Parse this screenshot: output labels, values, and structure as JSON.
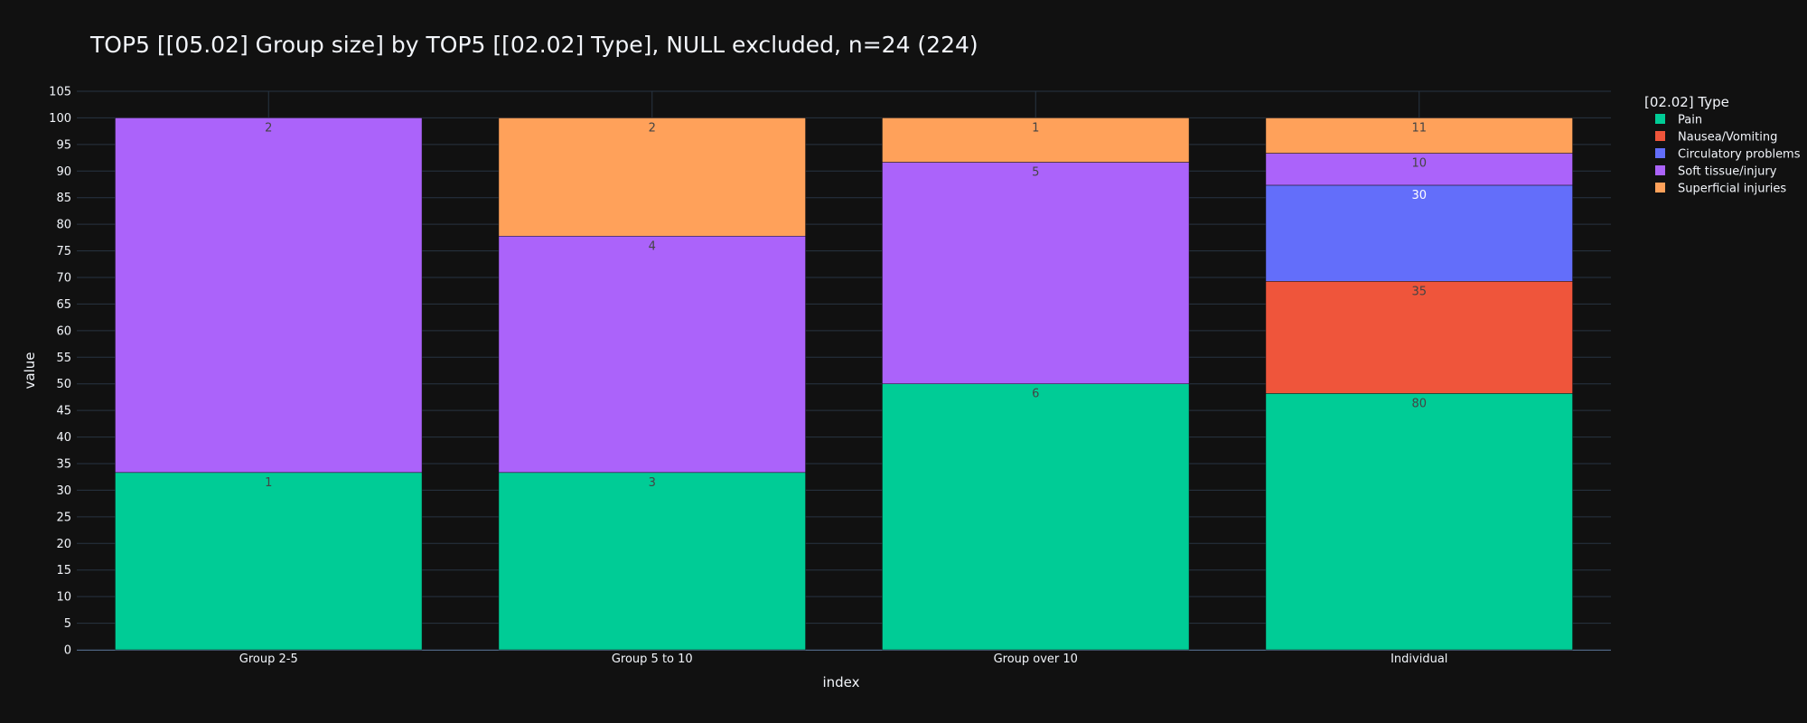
{
  "chart_data": {
    "type": "bar",
    "barmode": "stack",
    "title": "TOP5 [[05.02] Group size] by TOP5 [[02.02] Type], NULL excluded, n=24 (224)",
    "xlabel": "index",
    "ylabel": "value",
    "ylim": [
      0,
      105
    ],
    "ytick_step": 5,
    "grid": true,
    "legend_title": "[02.02] Type",
    "legend_position": "top-right",
    "categories": [
      "Group 2-5",
      "Group 5 to 10",
      "Group over 10",
      "Individual"
    ],
    "series": [
      {
        "name": "Pain",
        "color": "#00cc96",
        "label_color": "#444444",
        "values": [
          33.33,
          33.33,
          50.0,
          48.19
        ],
        "labels": [
          "1",
          "3",
          "6",
          "80"
        ]
      },
      {
        "name": "Nausea/Vomiting",
        "color": "#ef553b",
        "label_color": "#444444",
        "values": [
          0,
          0,
          0,
          21.08
        ],
        "labels": [
          "",
          "",
          "",
          "35"
        ]
      },
      {
        "name": "Circulatory problems",
        "color": "#636efa",
        "label_color": "#ffffff",
        "values": [
          0,
          0,
          0,
          18.07
        ],
        "labels": [
          "",
          "",
          "",
          "30"
        ]
      },
      {
        "name": "Soft tissue/injury",
        "color": "#ab63fa",
        "label_color": "#444444",
        "values": [
          66.67,
          44.44,
          41.67,
          6.02
        ],
        "labels": [
          "2",
          "4",
          "5",
          "10"
        ]
      },
      {
        "name": "Superficial injuries",
        "color": "#ffa15a",
        "label_color": "#444444",
        "values": [
          0,
          22.22,
          8.33,
          6.63
        ],
        "labels": [
          "",
          "2",
          "1",
          "11"
        ]
      }
    ],
    "colors": {
      "background": "#111111",
      "grid": "#283442",
      "text": "#f2f5fa"
    }
  }
}
